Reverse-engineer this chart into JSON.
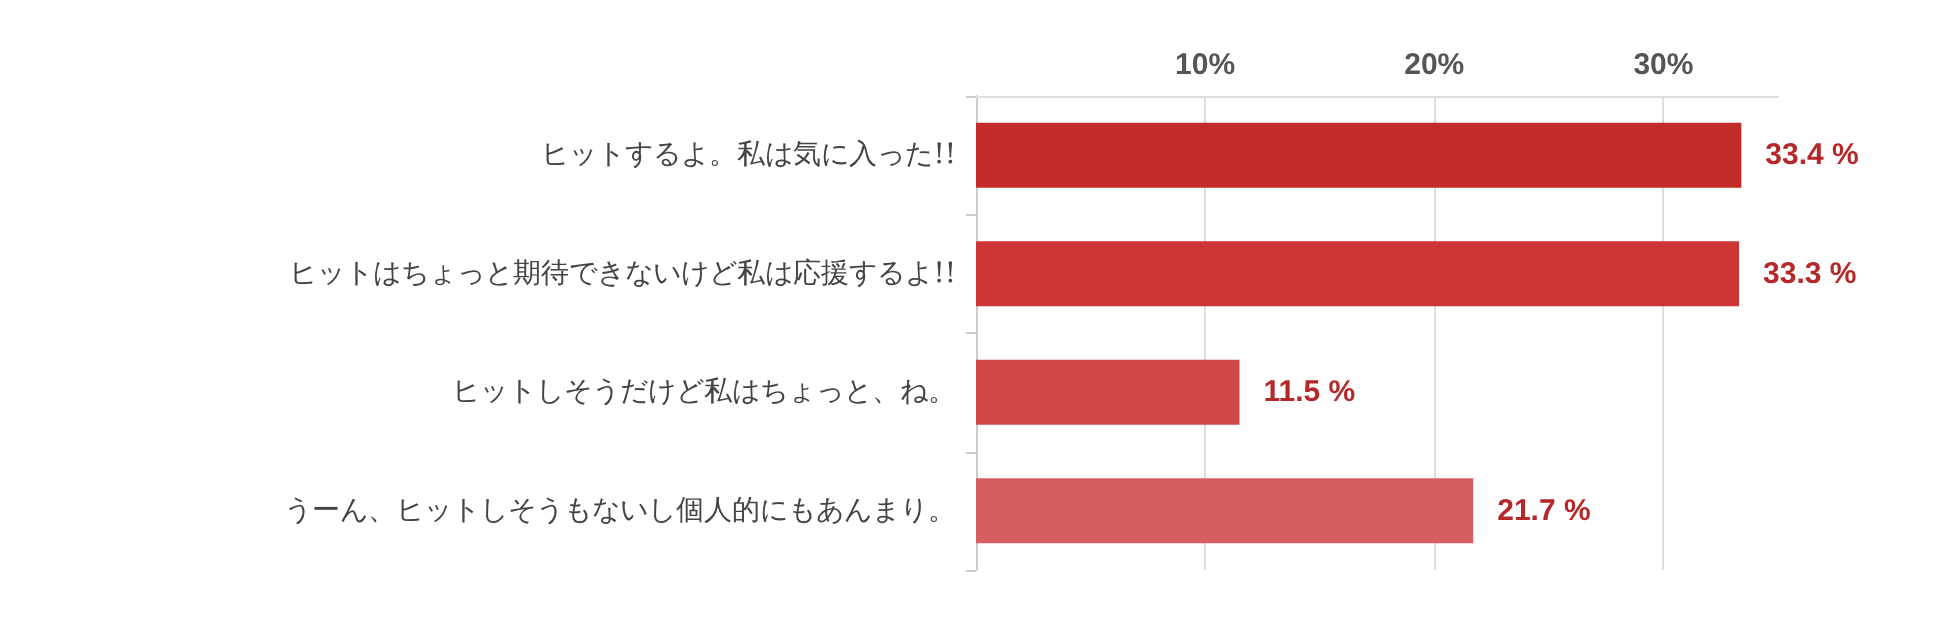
{
  "chart_data": {
    "type": "bar",
    "orientation": "horizontal",
    "categories": [
      "ヒットするよ。私は気に入った!!",
      "ヒットはちょっと期待できないけど私は応援するよ!!",
      "ヒットしそうだけど私はちょっと、ね。",
      "うーん、ヒットしそうもないし個人的にもあんまり。"
    ],
    "values": [
      33.4,
      33.3,
      11.5,
      21.7
    ],
    "colors": [
      "#c22b27",
      "#cb3535",
      "#d04848",
      "#d45e62"
    ],
    "value_labels": [
      "33.4 %",
      "33.3 %",
      "11.5 %",
      "21.7 %"
    ],
    "xlim": [
      0,
      35
    ],
    "xticks": [
      {
        "value": 0,
        "label": null
      },
      {
        "value": 10,
        "label": "10%"
      },
      {
        "value": 20,
        "label": "20%"
      },
      {
        "value": 30,
        "label": "30%"
      }
    ],
    "grid": "x"
  }
}
